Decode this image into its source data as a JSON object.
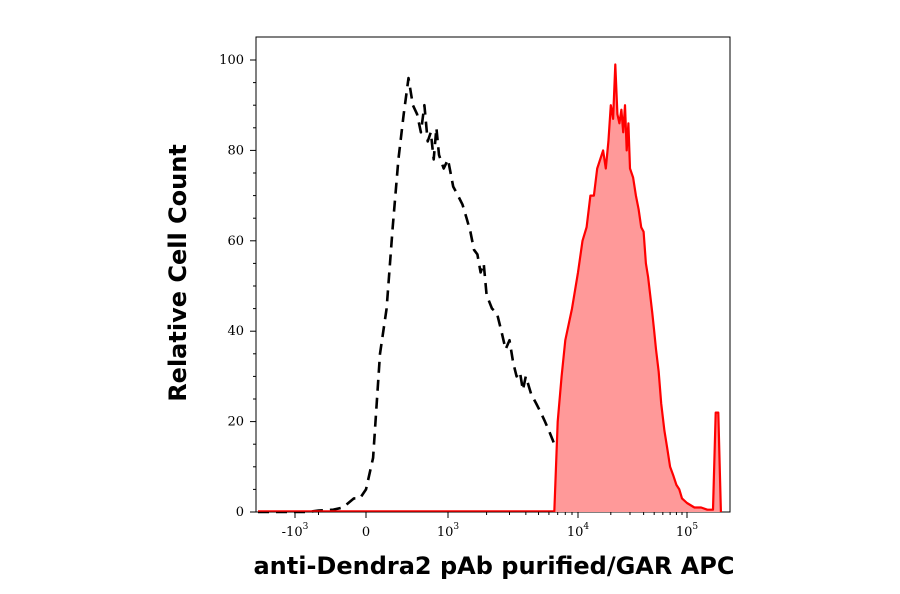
{
  "chart_data": {
    "type": "area",
    "xlabel": "anti-Dendra2 pAb purified/GAR APC",
    "ylabel": "Relative Cell Count",
    "x_scale": "biexponential",
    "xlim": [
      -2200,
      170000
    ],
    "ylim": [
      0,
      103
    ],
    "y_ticks": [
      0,
      20,
      40,
      60,
      80,
      100
    ],
    "y_tick_labels": [
      "0",
      "20",
      "40",
      "60",
      "80",
      "100"
    ],
    "x_ticks": [
      {
        "value": -1000,
        "label": "-10",
        "exp": "3"
      },
      {
        "value": 0,
        "label": "0",
        "exp": ""
      },
      {
        "value": 1000,
        "label": "10",
        "exp": "3"
      },
      {
        "value": 10000,
        "label": "10",
        "exp": "4"
      },
      {
        "value": 100000,
        "label": "10",
        "exp": "5"
      }
    ],
    "colors": {
      "control": "#000000",
      "stained_line": "#ff0000",
      "stained_fill": "#ff9999"
    },
    "series": [
      {
        "style": "dashed",
        "x": [
          -2200,
          -1500,
          -1000,
          -700,
          -500,
          -300,
          -200,
          -100,
          -50,
          0,
          50,
          100,
          150,
          200,
          250,
          300,
          350,
          400,
          450,
          500,
          550,
          600,
          650,
          700,
          750,
          800,
          900,
          1000,
          1100,
          1200,
          1300,
          1400,
          1500,
          1600,
          1700,
          1800,
          1900,
          2000,
          2200,
          2400,
          2600,
          2800,
          3000,
          3200,
          3400,
          3600,
          3800,
          4000,
          4400,
          4800,
          5200,
          5600,
          6000,
          6400,
          6800
        ],
        "values": [
          0,
          0,
          0,
          0,
          0.3,
          0.5,
          1,
          3,
          3,
          5,
          12,
          35,
          45,
          63,
          78,
          88,
          96,
          90,
          88,
          84,
          90,
          82,
          84,
          78,
          85,
          79,
          76,
          78,
          72,
          70,
          68,
          65,
          62,
          58,
          57,
          53,
          55,
          48,
          45,
          44,
          40,
          36,
          38,
          33,
          30,
          31,
          27,
          30,
          26,
          24,
          22,
          20,
          18,
          16,
          14
        ]
      },
      {
        "style": "filled",
        "x": [
          6600,
          7000,
          7500,
          8000,
          9000,
          10000,
          11000,
          12000,
          13000,
          14000,
          15000,
          16000,
          17000,
          18000,
          19000,
          20000,
          21000,
          22000,
          23000,
          24000,
          25000,
          26000,
          27000,
          28000,
          29000,
          30000,
          32000,
          34000,
          36000,
          38000,
          40000,
          42000,
          44000,
          46000,
          48000,
          50000,
          52000,
          55000,
          58000,
          62000,
          66000,
          70000,
          75000,
          80000,
          85000,
          90000,
          100000,
          110000,
          120000,
          130000,
          140000,
          145000,
          150000,
          155000
        ],
        "values": [
          0,
          20,
          30,
          38,
          45,
          53,
          60,
          63,
          70,
          70,
          76,
          78,
          80,
          76,
          82,
          90,
          87,
          99,
          88,
          86,
          89,
          84,
          90,
          80,
          86,
          76,
          74,
          70,
          67,
          63,
          62,
          55,
          52,
          48,
          44,
          40,
          36,
          31,
          24,
          18,
          14,
          10,
          8,
          6,
          5,
          3,
          2,
          1,
          1,
          0.5,
          0.5,
          22,
          22,
          0
        ]
      }
    ]
  }
}
